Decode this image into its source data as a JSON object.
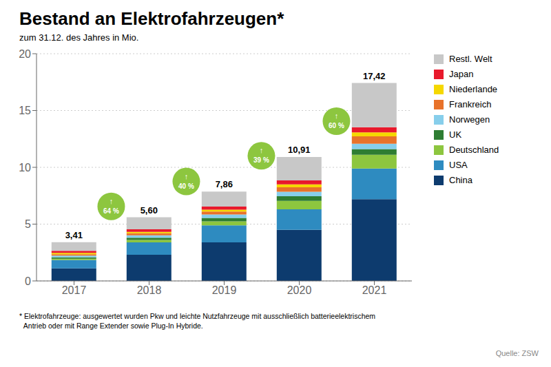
{
  "chart_data": {
    "type": "bar",
    "stacked": true,
    "title": "Bestand an Elektrofahrzeugen*",
    "subtitle": "zum 31.12. des Jahres in Mio.",
    "categories": [
      "2017",
      "2018",
      "2019",
      "2020",
      "2021"
    ],
    "series": [
      {
        "name": "China",
        "color": "#0d3b6e",
        "values": [
          1.1,
          2.3,
          3.4,
          4.5,
          7.2
        ]
      },
      {
        "name": "USA",
        "color": "#2e8bc0",
        "values": [
          0.75,
          1.1,
          1.5,
          1.8,
          2.7
        ]
      },
      {
        "name": "Deutschland",
        "color": "#8dc63f",
        "values": [
          0.1,
          0.2,
          0.35,
          0.75,
          1.2
        ]
      },
      {
        "name": "UK",
        "color": "#2e7d32",
        "values": [
          0.13,
          0.2,
          0.3,
          0.4,
          0.5
        ]
      },
      {
        "name": "Norwegen",
        "color": "#87ceeb",
        "values": [
          0.15,
          0.22,
          0.3,
          0.4,
          0.48
        ]
      },
      {
        "name": "Frankreich",
        "color": "#e8722a",
        "values": [
          0.12,
          0.18,
          0.26,
          0.4,
          0.65
        ]
      },
      {
        "name": "Niederlande",
        "color": "#f5d800",
        "values": [
          0.12,
          0.12,
          0.16,
          0.25,
          0.35
        ]
      },
      {
        "name": "Japan",
        "color": "#e8192c",
        "values": [
          0.18,
          0.22,
          0.28,
          0.35,
          0.45
        ]
      },
      {
        "name": "Restl. Welt",
        "color": "#c8c8c8",
        "values": [
          0.76,
          1.06,
          1.31,
          2.06,
          3.89
        ]
      }
    ],
    "ylim": [
      0,
      20
    ],
    "yticks": [
      0,
      5,
      10,
      15,
      20
    ],
    "grid": true,
    "legend": "right",
    "totals": [
      3.41,
      5.6,
      7.86,
      10.91,
      17.42
    ],
    "total_labels": [
      "3,41",
      "5,60",
      "7,86",
      "10,91",
      "17,42"
    ],
    "growth_labels": [
      "64 %",
      "40 %",
      "39 %",
      "60 %"
    ],
    "growth_arrow": "↑",
    "growth_color": "#8dc63f",
    "footnote": "* Elektrofahrzeuge: ausgewertet wurden Pkw und leichte Nutzfahrzeuge mit ausschließlich batterieelektrischem\n  Antrieb oder mit Range Extender sowie Plug-In Hybride.",
    "source": "Quelle: ZSW"
  }
}
